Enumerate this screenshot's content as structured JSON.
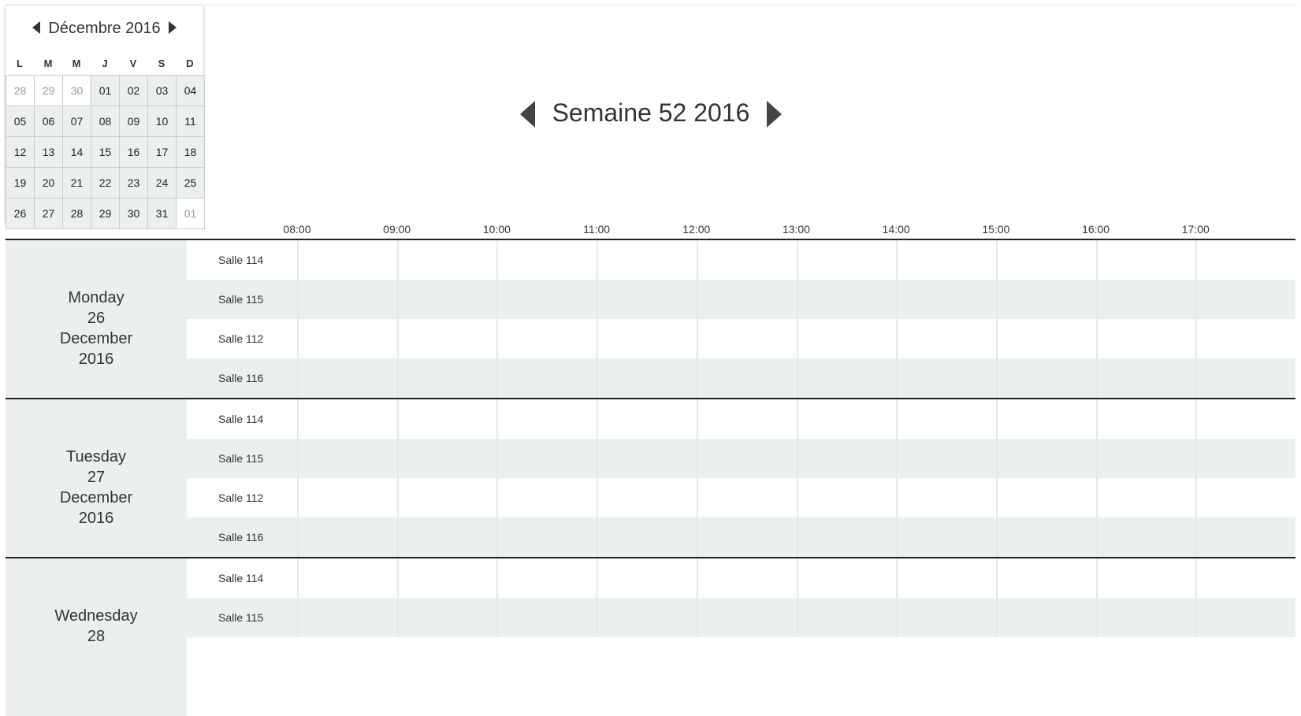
{
  "mini_calendar": {
    "title": "Décembre 2016",
    "weekdays": [
      "L",
      "M",
      "M",
      "J",
      "V",
      "S",
      "D"
    ],
    "weeks": [
      [
        "28",
        "29",
        "30",
        "01",
        "02",
        "03",
        "04"
      ],
      [
        "05",
        "06",
        "07",
        "08",
        "09",
        "10",
        "11"
      ],
      [
        "12",
        "13",
        "14",
        "15",
        "16",
        "17",
        "18"
      ],
      [
        "19",
        "20",
        "21",
        "22",
        "23",
        "24",
        "25"
      ],
      [
        "26",
        "27",
        "28",
        "29",
        "30",
        "31",
        "01"
      ]
    ]
  },
  "week_nav": {
    "title": "Semaine 52 2016"
  },
  "times": [
    "08:00",
    "09:00",
    "10:00",
    "11:00",
    "12:00",
    "13:00",
    "14:00",
    "15:00",
    "16:00",
    "17:00"
  ],
  "days": [
    {
      "lines": [
        "Monday",
        "26",
        "December",
        "2016"
      ],
      "rooms": [
        "Salle 114",
        "Salle 115",
        "Salle 112",
        "Salle 116"
      ]
    },
    {
      "lines": [
        "Tuesday",
        "27",
        "December",
        "2016"
      ],
      "rooms": [
        "Salle 114",
        "Salle 115",
        "Salle 112",
        "Salle 116"
      ]
    },
    {
      "lines": [
        "Wednesday",
        "28"
      ],
      "rooms": [
        "Salle 114",
        "Salle 115"
      ]
    }
  ]
}
